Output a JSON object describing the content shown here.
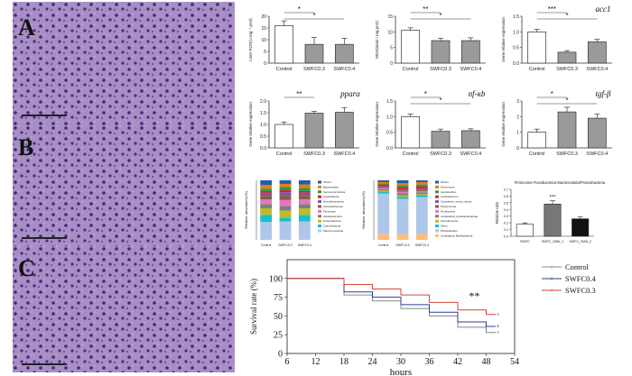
{
  "figure": {
    "panel_labels": [
      "A",
      "B",
      "C"
    ],
    "histology_colors": {
      "background": "#a98ec5",
      "nucleus": "#3f2a7a",
      "stroma": "#c9a7d8"
    }
  },
  "bar_charts": [
    {
      "id": "liver-ros",
      "title": "",
      "ylabel": "Liver ROS(U mg⁻¹ prot)",
      "categories": [
        "Control",
        "SWFC0.3",
        "SWFC0.4"
      ],
      "values": [
        16,
        8,
        8
      ],
      "errors": [
        2,
        3,
        2.6
      ],
      "ylim": [
        0,
        20
      ],
      "yticks": [
        "0",
        "5",
        "10",
        "15",
        "20"
      ],
      "colors": [
        "#ffffff",
        "#9a9a9a",
        "#9a9a9a"
      ],
      "sig": [
        {
          "from": 0,
          "to": 1,
          "label": "*"
        },
        {
          "from": 0,
          "to": 2,
          "label": "*"
        }
      ]
    },
    {
      "id": "mda",
      "title": "",
      "ylabel": "MDA(nmol / mg prot)",
      "categories": [
        "Control",
        "SWFC0.3",
        "SWFC0.4"
      ],
      "values": [
        10.5,
        7.2,
        7.2
      ],
      "errors": [
        0.8,
        0.7,
        0.9
      ],
      "ylim": [
        0,
        15
      ],
      "yticks": [
        "0",
        "5",
        "10",
        "15"
      ],
      "colors": [
        "#ffffff",
        "#9a9a9a",
        "#9a9a9a"
      ],
      "sig": [
        {
          "from": 0,
          "to": 1,
          "label": "**"
        },
        {
          "from": 0,
          "to": 2,
          "label": "*"
        }
      ]
    },
    {
      "id": "acc1",
      "title": "acc1",
      "ylabel": "Gene relative expression",
      "categories": [
        "Control",
        "SWFC0.3",
        "SWFC0.4"
      ],
      "values": [
        1.0,
        0.35,
        0.68
      ],
      "errors": [
        0.08,
        0.05,
        0.08
      ],
      "ylim": [
        0,
        1.5
      ],
      "yticks": [
        "0.0",
        "0.5",
        "1.0",
        "1.5"
      ],
      "colors": [
        "#ffffff",
        "#9a9a9a",
        "#9a9a9a"
      ],
      "sig": [
        {
          "from": 0,
          "to": 1,
          "label": "***"
        },
        {
          "from": 0,
          "to": 2,
          "label": "*"
        }
      ]
    },
    {
      "id": "ppara",
      "title": "pparα",
      "ylabel": "Gene relative expression",
      "categories": [
        "Control",
        "SWFC0.3",
        "SWFC0.4"
      ],
      "values": [
        1.0,
        1.48,
        1.52
      ],
      "errors": [
        0.1,
        0.08,
        0.2
      ],
      "ylim": [
        0,
        2.0
      ],
      "yticks": [
        "0.0",
        "0.5",
        "1.0",
        "1.5",
        "2.0"
      ],
      "colors": [
        "#ffffff",
        "#9a9a9a",
        "#9a9a9a"
      ],
      "sig": [
        {
          "from": 0,
          "to": 1,
          "label": "**"
        }
      ]
    },
    {
      "id": "nfkb",
      "title": "nf-κb",
      "ylabel": "Gene relative expression",
      "categories": [
        "Control",
        "SWFC0.3",
        "SWFC0.4"
      ],
      "values": [
        1.0,
        0.53,
        0.55
      ],
      "errors": [
        0.08,
        0.07,
        0.06
      ],
      "ylim": [
        0,
        1.5
      ],
      "yticks": [
        "0.0",
        "0.5",
        "1.0",
        "1.5"
      ],
      "colors": [
        "#ffffff",
        "#9a9a9a",
        "#9a9a9a"
      ],
      "sig": [
        {
          "from": 0,
          "to": 1,
          "label": "*"
        },
        {
          "from": 0,
          "to": 2,
          "label": "*"
        }
      ]
    },
    {
      "id": "tgfb",
      "title": "tgf-β",
      "ylabel": "Gene relative expression",
      "categories": [
        "Control",
        "SWFC0.3",
        "SWFC0.4"
      ],
      "values": [
        1.0,
        2.3,
        1.9
      ],
      "errors": [
        0.2,
        0.3,
        0.25
      ],
      "ylim": [
        0,
        3
      ],
      "yticks": [
        "0",
        "1",
        "2",
        "3"
      ],
      "colors": [
        "#ffffff",
        "#9a9a9a",
        "#9a9a9a"
      ],
      "sig": [
        {
          "from": 0,
          "to": 1,
          "label": "*"
        },
        {
          "from": 0,
          "to": 2,
          "label": "*"
        }
      ]
    }
  ],
  "phylum_chart": {
    "title": "Firmicutes+Fusobacteria+Bacteroidota/Proteobacteria",
    "ylabel": "Relative ratio",
    "categories": [
      "SWFC",
      "SWFC_SWb_1",
      "SWFC_SWb_2"
    ],
    "values": [
      0.18,
      0.48,
      0.26
    ],
    "errors": [
      0.02,
      0.05,
      0.03
    ],
    "ylim": [
      0,
      0.7
    ],
    "yticks": [
      "0.0",
      "0.1",
      "0.2",
      "0.3",
      "0.4",
      "0.5",
      "0.6",
      "0.7"
    ],
    "colors": [
      "#ffffff",
      "#777777",
      "#111111"
    ],
    "sig_label": "***"
  },
  "stacked_charts": [
    {
      "ylabel": "Relative abundance(%)",
      "categories": [
        "Control",
        "SWFC0.3",
        "SWFC0.4"
      ],
      "legend": [
        "Others",
        "Bacteroidota",
        "Verrucomicrobiota",
        "Fusobacteria",
        "Desulfobacterota",
        "Actinobacteriota",
        "Firmicutes",
        "Acidobacteriota",
        "Proteobacteria",
        "Cyanobacteria",
        "Planctomycetota"
      ],
      "colors": [
        "#1f5fa8",
        "#e87c1a",
        "#2a9a3a",
        "#c92a2a",
        "#7b55b3",
        "#8b5a40",
        "#e377c2",
        "#7f7f7f",
        "#bcbd22",
        "#17becf",
        "#aec7e8"
      ],
      "series": [
        [
          8,
          6,
          7
        ],
        [
          6,
          5,
          6
        ],
        [
          4,
          5,
          5
        ],
        [
          3,
          4,
          3
        ],
        [
          5,
          6,
          5
        ],
        [
          6,
          7,
          6
        ],
        [
          8,
          10,
          8
        ],
        [
          7,
          8,
          7
        ],
        [
          11,
          12,
          11
        ],
        [
          12,
          6,
          11
        ],
        [
          30,
          31,
          31
        ]
      ]
    },
    {
      "ylabel": "Relative abundance(%)",
      "categories": [
        "Control",
        "SWFC0.3",
        "SWFC0.4"
      ],
      "legend": [
        "Others",
        "Aeromonas",
        "Lactobacillus",
        "Cetobacterium",
        "Clostridium_sensu_stricto",
        "Plesiomonas",
        "Romboutsia",
        "unclassified_Fusobacteriaceae",
        "Pseudomonas",
        "Vibrio",
        "Phreatobacter",
        "Candidatus_Bacilloplasma"
      ],
      "colors": [
        "#1f5fa8",
        "#e87c1a",
        "#2a9a3a",
        "#c92a2a",
        "#7b55b3",
        "#8b5a40",
        "#e377c2",
        "#7f7f7f",
        "#bcbd22",
        "#17becf",
        "#aec7e8",
        "#ffbb78"
      ],
      "series": [
        [
          3,
          5,
          3
        ],
        [
          2,
          3,
          4
        ],
        [
          2,
          3,
          3
        ],
        [
          3,
          4,
          4
        ],
        [
          1,
          2,
          2
        ],
        [
          2,
          2,
          2
        ],
        [
          2,
          3,
          2
        ],
        [
          2,
          3,
          3
        ],
        [
          2,
          3,
          2
        ],
        [
          3,
          3,
          3
        ],
        [
          68,
          60,
          62
        ],
        [
          10,
          9,
          10
        ]
      ]
    }
  ],
  "survival_chart": {
    "type": "line",
    "xlabel": "hours",
    "ylabel": "Survival rate (%)",
    "x_ticks": [
      6,
      12,
      18,
      24,
      30,
      36,
      42,
      48,
      54
    ],
    "y_ticks": [
      0,
      25,
      50,
      75,
      100
    ],
    "xlim": [
      6,
      54
    ],
    "ylim": [
      0,
      125
    ],
    "annotation": "**",
    "series": [
      {
        "name": "Control",
        "color": "#888888",
        "points": [
          [
            6,
            100
          ],
          [
            18,
            100
          ],
          [
            18,
            78
          ],
          [
            24,
            78
          ],
          [
            24,
            70
          ],
          [
            30,
            70
          ],
          [
            30,
            60
          ],
          [
            36,
            60
          ],
          [
            36,
            50
          ],
          [
            42,
            50
          ],
          [
            42,
            35
          ],
          [
            48,
            35
          ],
          [
            48,
            28
          ],
          [
            50,
            28
          ]
        ]
      },
      {
        "name": "SWFC0.4",
        "color": "#2a3d8f",
        "points": [
          [
            6,
            100
          ],
          [
            18,
            100
          ],
          [
            18,
            82
          ],
          [
            24,
            82
          ],
          [
            24,
            75
          ],
          [
            30,
            75
          ],
          [
            30,
            65
          ],
          [
            36,
            65
          ],
          [
            36,
            55
          ],
          [
            42,
            55
          ],
          [
            42,
            42
          ],
          [
            48,
            42
          ],
          [
            48,
            36
          ],
          [
            50,
            36
          ]
        ]
      },
      {
        "name": "SWFC0.3",
        "color": "#d6453a",
        "points": [
          [
            6,
            100
          ],
          [
            18,
            100
          ],
          [
            18,
            92
          ],
          [
            24,
            92
          ],
          [
            24,
            86
          ],
          [
            30,
            86
          ],
          [
            30,
            78
          ],
          [
            36,
            78
          ],
          [
            36,
            68
          ],
          [
            42,
            68
          ],
          [
            42,
            58
          ],
          [
            48,
            58
          ],
          [
            48,
            52
          ],
          [
            50,
            52
          ]
        ]
      }
    ]
  }
}
